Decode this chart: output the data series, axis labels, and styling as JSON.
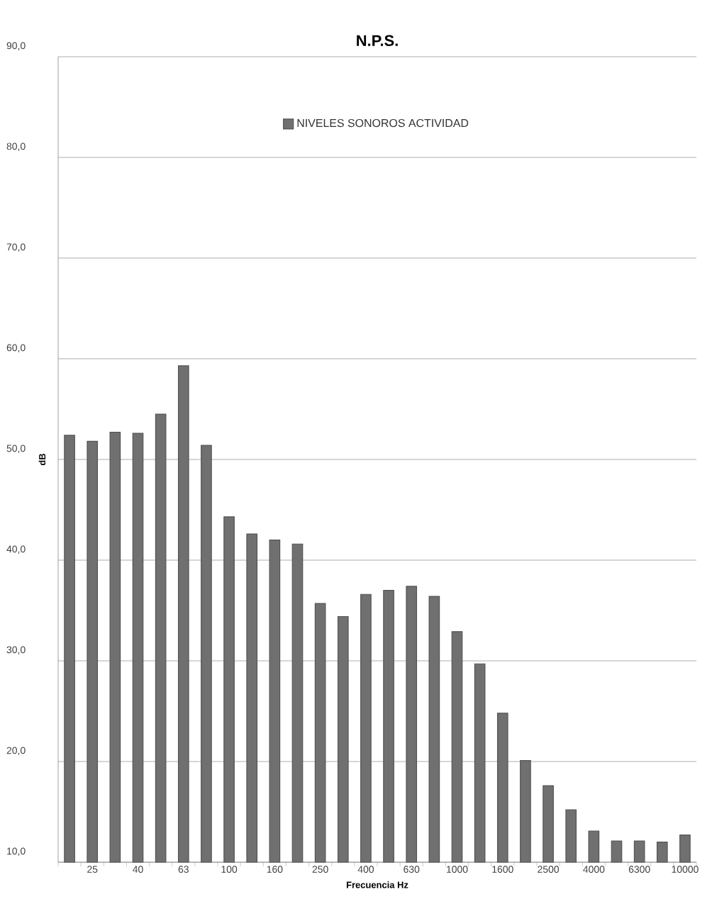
{
  "chart_data": {
    "type": "bar",
    "title": "N.P.S.",
    "xlabel": "Frecuencia Hz",
    "ylabel": "dB",
    "categories": [
      null,
      "25",
      null,
      "40",
      null,
      "63",
      null,
      "100",
      null,
      "160",
      null,
      "250",
      null,
      "400",
      null,
      "630",
      null,
      "1000",
      null,
      "1600",
      null,
      "2500",
      null,
      "4000",
      null,
      "6300",
      null,
      "10000"
    ],
    "series": [
      {
        "name": "NIVELES SONOROS ACTIVIDAD",
        "color": "#707070",
        "values": [
          52.4,
          51.8,
          52.7,
          52.6,
          54.5,
          59.3,
          51.4,
          44.3,
          42.6,
          42.0,
          41.6,
          35.7,
          34.4,
          36.6,
          37.0,
          37.4,
          36.4,
          32.9,
          29.7,
          24.8,
          20.1,
          17.6,
          15.2,
          13.1,
          12.1,
          12.1,
          12.0,
          12.7
        ]
      }
    ],
    "ylim": [
      10,
      90
    ],
    "yticks": [
      {
        "value": 10,
        "label": "10,0"
      },
      {
        "value": 20,
        "label": "20,0"
      },
      {
        "value": 30,
        "label": "30,0"
      },
      {
        "value": 40,
        "label": "40,0"
      },
      {
        "value": 50,
        "label": "50,0"
      },
      {
        "value": 60,
        "label": "60,0"
      },
      {
        "value": 70,
        "label": "70,0"
      },
      {
        "value": 80,
        "label": "80,0"
      },
      {
        "value": 90,
        "label": "90,0"
      }
    ],
    "grid": "y",
    "legend": "top"
  }
}
